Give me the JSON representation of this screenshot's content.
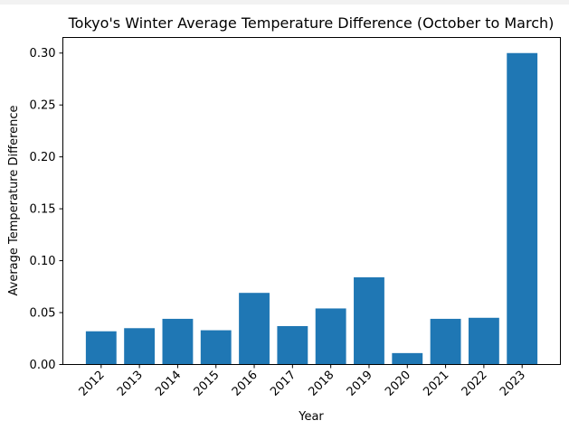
{
  "chart_data": {
    "type": "bar",
    "title": "Tokyo's Winter Average Temperature Difference (October to March)",
    "xlabel": "Year",
    "ylabel": "Average Temperature Difference",
    "categories": [
      "2012",
      "2013",
      "2014",
      "2015",
      "2016",
      "2017",
      "2018",
      "2019",
      "2020",
      "2021",
      "2022",
      "2023"
    ],
    "values": [
      0.032,
      0.035,
      0.044,
      0.033,
      0.069,
      0.037,
      0.054,
      0.084,
      0.011,
      0.044,
      0.045,
      0.3
    ],
    "ylim": [
      0,
      0.315
    ],
    "yticks": [
      "0.00",
      "0.05",
      "0.10",
      "0.15",
      "0.20",
      "0.25",
      "0.30"
    ],
    "bar_color": "#1f77b4",
    "grid": false
  }
}
